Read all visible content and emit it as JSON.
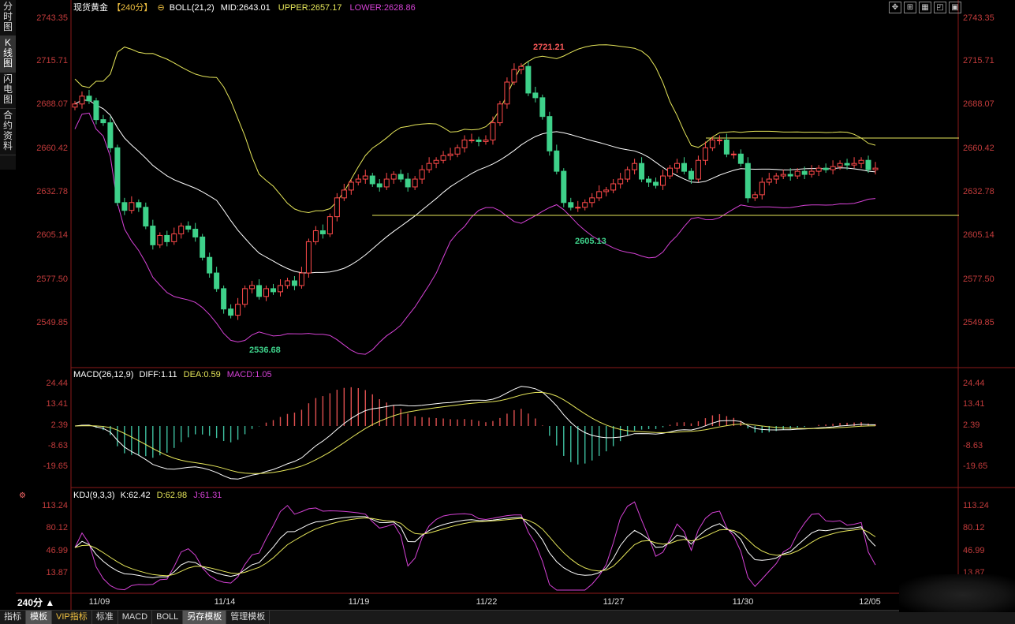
{
  "sidebar": {
    "items": [
      {
        "label": "分时\n图",
        "active": false
      },
      {
        "label": "K\n线\n图",
        "active": true
      },
      {
        "label": "闪\n电\n图",
        "active": false
      },
      {
        "label": "合\n约\n资\n料",
        "active": false
      }
    ]
  },
  "toolbar": {
    "icons": [
      "move-icon",
      "expand-icon",
      "grid-icon",
      "restore-icon",
      "maximize-icon"
    ]
  },
  "main_header": {
    "instrument": "现货黄金",
    "period": "【240分】",
    "indicator": "BOLL(21,2)",
    "mid": "MID:2643.01",
    "upper": "UPPER:2657.17",
    "lower": "LOWER:2628.86"
  },
  "macd_header": {
    "name": "MACD(26,12,9)",
    "diff": "DIFF:1.11",
    "dea": "DEA:0.59",
    "macd": "MACD:1.05"
  },
  "kdj_header": {
    "name": "KDJ(9,3,3)",
    "k": "K:62.42",
    "d": "D:62.98",
    "j": "J:61.31"
  },
  "price_ticks": [
    "2743.35",
    "2715.71",
    "2688.07",
    "2660.42",
    "2632.78",
    "2605.14",
    "2577.50",
    "2549.85"
  ],
  "macd_ticks": [
    "24.44",
    "13.41",
    "2.39",
    "-8.63",
    "-19.65"
  ],
  "kdj_ticks": [
    "113.24",
    "80.12",
    "46.99",
    "13.87"
  ],
  "date_ticks": [
    "11/09",
    "11/14",
    "11/19",
    "11/22",
    "11/27",
    "11/30",
    "12/05"
  ],
  "annotations": {
    "high": "2721.21",
    "low1": "2536.68",
    "low2": "2605.13"
  },
  "period_label": "240分 ▲",
  "bottom_tabs": [
    {
      "label": "指标",
      "active": false,
      "vip": false
    },
    {
      "label": "模板",
      "active": true,
      "vip": false
    },
    {
      "label": "VIP指标",
      "active": false,
      "vip": true
    },
    {
      "label": "标准",
      "active": false,
      "vip": false
    },
    {
      "label": "MACD",
      "active": false,
      "vip": false
    },
    {
      "label": "BOLL",
      "active": false,
      "vip": false
    },
    {
      "label": "另存模板",
      "active": true,
      "vip": false
    },
    {
      "label": "管理模板",
      "active": false,
      "vip": false
    }
  ],
  "colors": {
    "up": "#ff4a4a",
    "down": "#3ed18a",
    "mid": "#ffffff",
    "upper": "#e6e65a",
    "lower": "#d642d6",
    "axis": "#c23b3b",
    "macd_pos": "#e05050",
    "macd_neg": "#3ec0a0"
  },
  "chart_data": [
    {
      "type": "candlestick",
      "title": "现货黄金【240分】",
      "xlabel": "",
      "ylabel": "",
      "ylim": [
        2530,
        2750
      ],
      "close_series": [
        2688,
        2693,
        2690,
        2678,
        2676,
        2660,
        2625,
        2620,
        2625,
        2622,
        2610,
        2598,
        2604,
        2600,
        2605,
        2610,
        2608,
        2603,
        2590,
        2580,
        2570,
        2557,
        2553,
        2560,
        2570,
        2572,
        2565,
        2570,
        2568,
        2572,
        2575,
        2572,
        2580,
        2600,
        2607,
        2605,
        2616,
        2628,
        2633,
        2638,
        2640,
        2642,
        2637,
        2635,
        2640,
        2643,
        2640,
        2635,
        2640,
        2646,
        2650,
        2652,
        2655,
        2656,
        2660,
        2665,
        2665,
        2664,
        2665,
        2676,
        2688,
        2702,
        2710,
        2712,
        2695,
        2692,
        2680,
        2658,
        2645,
        2625,
        2622,
        2622,
        2625,
        2628,
        2632,
        2633,
        2637,
        2640,
        2646,
        2650,
        2640,
        2638,
        2636,
        2642,
        2647,
        2650,
        2645,
        2640,
        2652,
        2660,
        2665,
        2665,
        2656,
        2656,
        2650,
        2628,
        2630,
        2638,
        2640,
        2642,
        2643,
        2642,
        2645,
        2643,
        2645,
        2647,
        2646,
        2648,
        2650,
        2649,
        2650,
        2652,
        2646,
        2647
      ],
      "series": [
        {
          "name": "MID",
          "value": 2643.01
        },
        {
          "name": "UPPER",
          "value": 2657.17
        },
        {
          "name": "LOWER",
          "value": 2628.86
        }
      ],
      "annotations": [
        {
          "label": "2721.21",
          "type": "high"
        },
        {
          "label": "2536.68",
          "type": "low"
        },
        {
          "label": "2605.13",
          "type": "low"
        }
      ],
      "x_tick_labels": [
        "11/09",
        "11/14",
        "11/19",
        "11/22",
        "11/27",
        "11/30",
        "12/05"
      ]
    },
    {
      "type": "bar",
      "title": "MACD(26,12,9)",
      "ylim": [
        -25,
        27
      ],
      "series": [
        {
          "name": "DIFF",
          "value": 1.11
        },
        {
          "name": "DEA",
          "value": 0.59
        },
        {
          "name": "MACD",
          "value": 1.05
        }
      ]
    },
    {
      "type": "line",
      "title": "KDJ(9,3,3)",
      "ylim": [
        0,
        120
      ],
      "series": [
        {
          "name": "K",
          "value": 62.42
        },
        {
          "name": "D",
          "value": 62.98
        },
        {
          "name": "J",
          "value": 61.31
        }
      ]
    }
  ]
}
